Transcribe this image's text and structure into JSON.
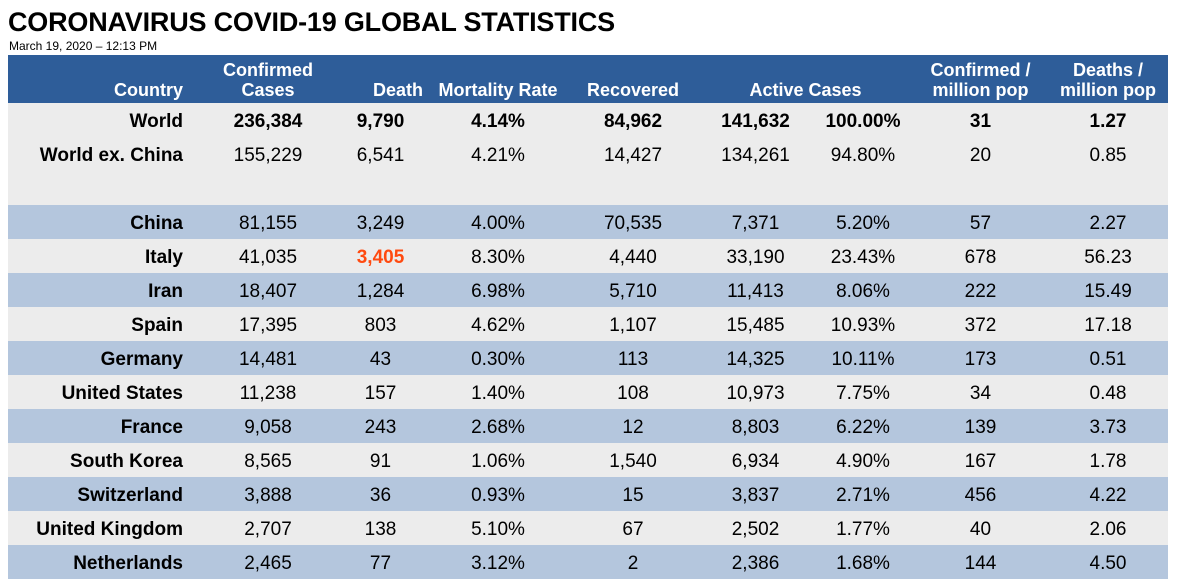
{
  "title": "CORONAVIRUS COVID-19 GLOBAL STATISTICS",
  "subtitle": "March 19, 2020 – 12:13 PM",
  "colors": {
    "header_bg": "#2e5d99",
    "band_light": "#ececec",
    "band_blue": "#b4c6dd",
    "highlight": "#ff4a10"
  },
  "headers": {
    "country": "Country",
    "confirmed": [
      "Confirmed",
      "Cases"
    ],
    "death": "Death",
    "mortality": "Mortality Rate",
    "recovered": "Recovered",
    "active": "Active Cases",
    "confirmed_per_million": [
      "Confirmed /",
      "million pop"
    ],
    "deaths_per_million": [
      "Deaths /",
      "million pop"
    ]
  },
  "summary_rows": [
    {
      "country": "World",
      "confirmed": "236,384",
      "death": "9,790",
      "mortality": "4.14%",
      "recovered": "84,962",
      "active": "141,632",
      "active_pct": "100.00%",
      "conf_per_million": "31",
      "deaths_per_million": "1.27"
    },
    {
      "country": "World ex. China",
      "confirmed": "155,229",
      "death": "6,541",
      "mortality": "4.21%",
      "recovered": "14,427",
      "active": "134,261",
      "active_pct": "94.80%",
      "conf_per_million": "20",
      "deaths_per_million": "0.85"
    }
  ],
  "rows": [
    {
      "country": "China",
      "confirmed": "81,155",
      "death": "3,249",
      "mortality": "4.00%",
      "recovered": "70,535",
      "active": "7,371",
      "active_pct": "5.20%",
      "conf_per_million": "57",
      "deaths_per_million": "2.27"
    },
    {
      "country": "Italy",
      "confirmed": "41,035",
      "death": "3,405",
      "mortality": "8.30%",
      "recovered": "4,440",
      "active": "33,190",
      "active_pct": "23.43%",
      "conf_per_million": "678",
      "deaths_per_million": "56.23"
    },
    {
      "country": "Iran",
      "confirmed": "18,407",
      "death": "1,284",
      "mortality": "6.98%",
      "recovered": "5,710",
      "active": "11,413",
      "active_pct": "8.06%",
      "conf_per_million": "222",
      "deaths_per_million": "15.49"
    },
    {
      "country": "Spain",
      "confirmed": "17,395",
      "death": "803",
      "mortality": "4.62%",
      "recovered": "1,107",
      "active": "15,485",
      "active_pct": "10.93%",
      "conf_per_million": "372",
      "deaths_per_million": "17.18"
    },
    {
      "country": "Germany",
      "confirmed": "14,481",
      "death": "43",
      "mortality": "0.30%",
      "recovered": "113",
      "active": "14,325",
      "active_pct": "10.11%",
      "conf_per_million": "173",
      "deaths_per_million": "0.51"
    },
    {
      "country": "United States",
      "confirmed": "11,238",
      "death": "157",
      "mortality": "1.40%",
      "recovered": "108",
      "active": "10,973",
      "active_pct": "7.75%",
      "conf_per_million": "34",
      "deaths_per_million": "0.48"
    },
    {
      "country": "France",
      "confirmed": "9,058",
      "death": "243",
      "mortality": "2.68%",
      "recovered": "12",
      "active": "8,803",
      "active_pct": "6.22%",
      "conf_per_million": "139",
      "deaths_per_million": "3.73"
    },
    {
      "country": "South Korea",
      "confirmed": "8,565",
      "death": "91",
      "mortality": "1.06%",
      "recovered": "1,540",
      "active": "6,934",
      "active_pct": "4.90%",
      "conf_per_million": "167",
      "deaths_per_million": "1.78"
    },
    {
      "country": "Switzerland",
      "confirmed": "3,888",
      "death": "36",
      "mortality": "0.93%",
      "recovered": "15",
      "active": "3,837",
      "active_pct": "2.71%",
      "conf_per_million": "456",
      "deaths_per_million": "4.22"
    },
    {
      "country": "United Kingdom",
      "confirmed": "2,707",
      "death": "138",
      "mortality": "5.10%",
      "recovered": "67",
      "active": "2,502",
      "active_pct": "1.77%",
      "conf_per_million": "40",
      "deaths_per_million": "2.06"
    },
    {
      "country": "Netherlands",
      "confirmed": "2,465",
      "death": "77",
      "mortality": "3.12%",
      "recovered": "2",
      "active": "2,386",
      "active_pct": "1.68%",
      "conf_per_million": "144",
      "deaths_per_million": "4.50"
    }
  ]
}
